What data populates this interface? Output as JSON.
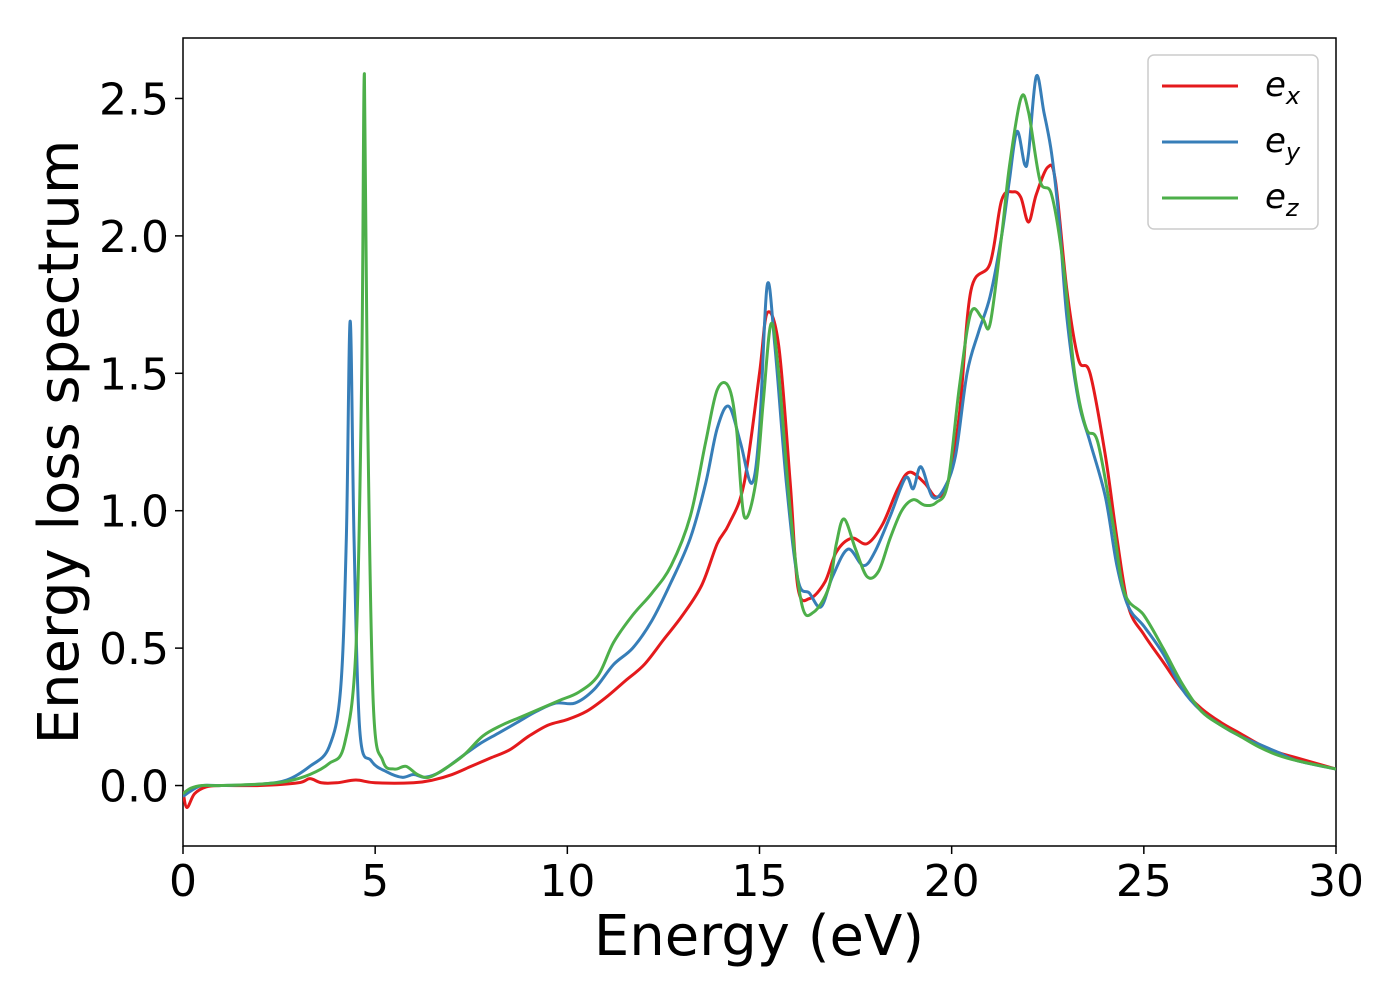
{
  "chart_data": {
    "type": "line",
    "title": "",
    "xlabel": "Energy (eV)",
    "ylabel": "Energy loss spectrum",
    "xlim": [
      0,
      30
    ],
    "ylim": [
      -0.22,
      2.72
    ],
    "xticks": [
      0,
      5,
      10,
      15,
      20,
      25,
      30
    ],
    "xtick_labels": [
      "0",
      "5",
      "10",
      "15",
      "20",
      "25",
      "30"
    ],
    "yticks": [
      0.0,
      0.5,
      1.0,
      1.5,
      2.0,
      2.5
    ],
    "ytick_labels": [
      "0.0",
      "0.5",
      "1.0",
      "1.5",
      "2.0",
      "2.5"
    ],
    "grid": false,
    "legend_position": "top-right",
    "series": [
      {
        "name": "e_x",
        "legend_base": "e",
        "legend_sub": "x",
        "color": "#e41a1c",
        "points": [
          [
            0,
            -0.02
          ],
          [
            0.1,
            -0.08
          ],
          [
            0.3,
            -0.03
          ],
          [
            0.6,
            -0.005
          ],
          [
            1,
            0
          ],
          [
            2,
            0.0
          ],
          [
            3,
            0.01
          ],
          [
            3.3,
            0.025
          ],
          [
            3.6,
            0.01
          ],
          [
            4,
            0.01
          ],
          [
            4.5,
            0.02
          ],
          [
            5,
            0.01
          ],
          [
            6,
            0.01
          ],
          [
            6.5,
            0.02
          ],
          [
            7,
            0.04
          ],
          [
            7.5,
            0.07
          ],
          [
            8,
            0.1
          ],
          [
            8.5,
            0.13
          ],
          [
            9,
            0.18
          ],
          [
            9.5,
            0.22
          ],
          [
            10,
            0.24
          ],
          [
            10.5,
            0.27
          ],
          [
            11,
            0.32
          ],
          [
            11.5,
            0.38
          ],
          [
            12,
            0.44
          ],
          [
            12.5,
            0.53
          ],
          [
            13,
            0.62
          ],
          [
            13.5,
            0.73
          ],
          [
            13.9,
            0.88
          ],
          [
            14.2,
            0.95
          ],
          [
            14.6,
            1.1
          ],
          [
            15.0,
            1.5
          ],
          [
            15.2,
            1.72
          ],
          [
            15.5,
            1.6
          ],
          [
            15.8,
            1.1
          ],
          [
            16.0,
            0.72
          ],
          [
            16.3,
            0.68
          ],
          [
            16.7,
            0.74
          ],
          [
            17.0,
            0.85
          ],
          [
            17.4,
            0.9
          ],
          [
            17.8,
            0.88
          ],
          [
            18.2,
            0.95
          ],
          [
            18.6,
            1.08
          ],
          [
            18.9,
            1.14
          ],
          [
            19.3,
            1.1
          ],
          [
            19.6,
            1.05
          ],
          [
            19.9,
            1.1
          ],
          [
            20.2,
            1.35
          ],
          [
            20.5,
            1.8
          ],
          [
            21.0,
            1.9
          ],
          [
            21.3,
            2.13
          ],
          [
            21.6,
            2.16
          ],
          [
            21.8,
            2.14
          ],
          [
            22.0,
            2.05
          ],
          [
            22.2,
            2.15
          ],
          [
            22.5,
            2.25
          ],
          [
            22.7,
            2.2
          ],
          [
            23.0,
            1.8
          ],
          [
            23.3,
            1.55
          ],
          [
            23.6,
            1.5
          ],
          [
            24.0,
            1.2
          ],
          [
            24.3,
            0.9
          ],
          [
            24.6,
            0.65
          ],
          [
            25.0,
            0.55
          ],
          [
            25.5,
            0.45
          ],
          [
            26,
            0.35
          ],
          [
            26.5,
            0.28
          ],
          [
            27,
            0.23
          ],
          [
            27.5,
            0.19
          ],
          [
            28,
            0.15
          ],
          [
            28.5,
            0.12
          ],
          [
            29,
            0.1
          ],
          [
            30,
            0.06
          ]
        ]
      },
      {
        "name": "e_y",
        "legend_base": "e",
        "legend_sub": "y",
        "color": "#377eb8",
        "points": [
          [
            0,
            -0.04
          ],
          [
            0.2,
            -0.02
          ],
          [
            0.5,
            0.0
          ],
          [
            1,
            0
          ],
          [
            2,
            0.005
          ],
          [
            2.7,
            0.02
          ],
          [
            3.3,
            0.07
          ],
          [
            3.8,
            0.14
          ],
          [
            4.1,
            0.35
          ],
          [
            4.25,
            0.9
          ],
          [
            4.35,
            1.69
          ],
          [
            4.45,
            0.9
          ],
          [
            4.6,
            0.2
          ],
          [
            4.9,
            0.09
          ],
          [
            5.3,
            0.05
          ],
          [
            5.7,
            0.03
          ],
          [
            6.0,
            0.04
          ],
          [
            6.3,
            0.03
          ],
          [
            6.7,
            0.05
          ],
          [
            7.2,
            0.1
          ],
          [
            7.7,
            0.15
          ],
          [
            8.2,
            0.19
          ],
          [
            8.7,
            0.23
          ],
          [
            9.2,
            0.27
          ],
          [
            9.7,
            0.3
          ],
          [
            10.2,
            0.3
          ],
          [
            10.7,
            0.35
          ],
          [
            11.2,
            0.44
          ],
          [
            11.7,
            0.5
          ],
          [
            12.2,
            0.6
          ],
          [
            12.7,
            0.74
          ],
          [
            13.2,
            0.9
          ],
          [
            13.6,
            1.1
          ],
          [
            13.9,
            1.3
          ],
          [
            14.2,
            1.38
          ],
          [
            14.5,
            1.25
          ],
          [
            14.8,
            1.1
          ],
          [
            15.0,
            1.3
          ],
          [
            15.2,
            1.82
          ],
          [
            15.4,
            1.6
          ],
          [
            15.7,
            1.1
          ],
          [
            16.0,
            0.75
          ],
          [
            16.3,
            0.7
          ],
          [
            16.6,
            0.65
          ],
          [
            16.9,
            0.76
          ],
          [
            17.3,
            0.86
          ],
          [
            17.7,
            0.8
          ],
          [
            18.0,
            0.85
          ],
          [
            18.4,
            0.98
          ],
          [
            18.8,
            1.12
          ],
          [
            19.0,
            1.08
          ],
          [
            19.2,
            1.16
          ],
          [
            19.5,
            1.05
          ],
          [
            19.8,
            1.08
          ],
          [
            20.1,
            1.2
          ],
          [
            20.4,
            1.5
          ],
          [
            20.7,
            1.65
          ],
          [
            21.0,
            1.78
          ],
          [
            21.3,
            2.0
          ],
          [
            21.5,
            2.2
          ],
          [
            21.7,
            2.38
          ],
          [
            21.9,
            2.26
          ],
          [
            22.0,
            2.3
          ],
          [
            22.2,
            2.58
          ],
          [
            22.4,
            2.45
          ],
          [
            22.6,
            2.3
          ],
          [
            22.8,
            2.05
          ],
          [
            23.0,
            1.7
          ],
          [
            23.3,
            1.4
          ],
          [
            23.6,
            1.25
          ],
          [
            24.0,
            1.05
          ],
          [
            24.3,
            0.8
          ],
          [
            24.6,
            0.65
          ],
          [
            25.0,
            0.58
          ],
          [
            25.5,
            0.48
          ],
          [
            26,
            0.35
          ],
          [
            26.5,
            0.27
          ],
          [
            27,
            0.22
          ],
          [
            27.5,
            0.18
          ],
          [
            28,
            0.15
          ],
          [
            28.5,
            0.12
          ],
          [
            29,
            0.09
          ],
          [
            30,
            0.06
          ]
        ]
      },
      {
        "name": "e_z",
        "legend_base": "e",
        "legend_sub": "z",
        "color": "#4daf4a",
        "points": [
          [
            0,
            -0.03
          ],
          [
            0.2,
            -0.01
          ],
          [
            0.5,
            0.0
          ],
          [
            1,
            0
          ],
          [
            2,
            0.005
          ],
          [
            2.7,
            0.015
          ],
          [
            3.3,
            0.04
          ],
          [
            3.8,
            0.08
          ],
          [
            4.2,
            0.15
          ],
          [
            4.5,
            0.5
          ],
          [
            4.65,
            1.5
          ],
          [
            4.72,
            2.59
          ],
          [
            4.8,
            1.4
          ],
          [
            4.95,
            0.3
          ],
          [
            5.2,
            0.09
          ],
          [
            5.5,
            0.06
          ],
          [
            5.8,
            0.07
          ],
          [
            6.1,
            0.04
          ],
          [
            6.4,
            0.03
          ],
          [
            6.8,
            0.06
          ],
          [
            7.3,
            0.11
          ],
          [
            7.8,
            0.18
          ],
          [
            8.3,
            0.22
          ],
          [
            8.8,
            0.25
          ],
          [
            9.3,
            0.28
          ],
          [
            9.8,
            0.31
          ],
          [
            10.3,
            0.34
          ],
          [
            10.8,
            0.4
          ],
          [
            11.2,
            0.52
          ],
          [
            11.7,
            0.62
          ],
          [
            12.2,
            0.7
          ],
          [
            12.7,
            0.8
          ],
          [
            13.2,
            0.98
          ],
          [
            13.6,
            1.25
          ],
          [
            13.9,
            1.44
          ],
          [
            14.2,
            1.45
          ],
          [
            14.4,
            1.3
          ],
          [
            14.6,
            0.98
          ],
          [
            14.9,
            1.1
          ],
          [
            15.1,
            1.4
          ],
          [
            15.3,
            1.68
          ],
          [
            15.5,
            1.5
          ],
          [
            15.8,
            1.0
          ],
          [
            16.1,
            0.66
          ],
          [
            16.4,
            0.63
          ],
          [
            16.8,
            0.72
          ],
          [
            17.0,
            0.88
          ],
          [
            17.2,
            0.97
          ],
          [
            17.5,
            0.86
          ],
          [
            17.8,
            0.76
          ],
          [
            18.1,
            0.78
          ],
          [
            18.4,
            0.9
          ],
          [
            18.7,
            1.0
          ],
          [
            19.0,
            1.04
          ],
          [
            19.3,
            1.02
          ],
          [
            19.6,
            1.03
          ],
          [
            19.9,
            1.1
          ],
          [
            20.2,
            1.45
          ],
          [
            20.5,
            1.72
          ],
          [
            20.8,
            1.7
          ],
          [
            21.0,
            1.68
          ],
          [
            21.3,
            2.0
          ],
          [
            21.5,
            2.25
          ],
          [
            21.8,
            2.5
          ],
          [
            22.0,
            2.45
          ],
          [
            22.3,
            2.2
          ],
          [
            22.6,
            2.15
          ],
          [
            22.9,
            1.9
          ],
          [
            23.2,
            1.5
          ],
          [
            23.5,
            1.3
          ],
          [
            23.8,
            1.25
          ],
          [
            24.2,
            0.95
          ],
          [
            24.5,
            0.7
          ],
          [
            25.0,
            0.62
          ],
          [
            25.5,
            0.5
          ],
          [
            26,
            0.37
          ],
          [
            26.5,
            0.27
          ],
          [
            27,
            0.22
          ],
          [
            27.5,
            0.18
          ],
          [
            28,
            0.14
          ],
          [
            28.5,
            0.11
          ],
          [
            29,
            0.09
          ],
          [
            30,
            0.06
          ]
        ]
      }
    ]
  }
}
